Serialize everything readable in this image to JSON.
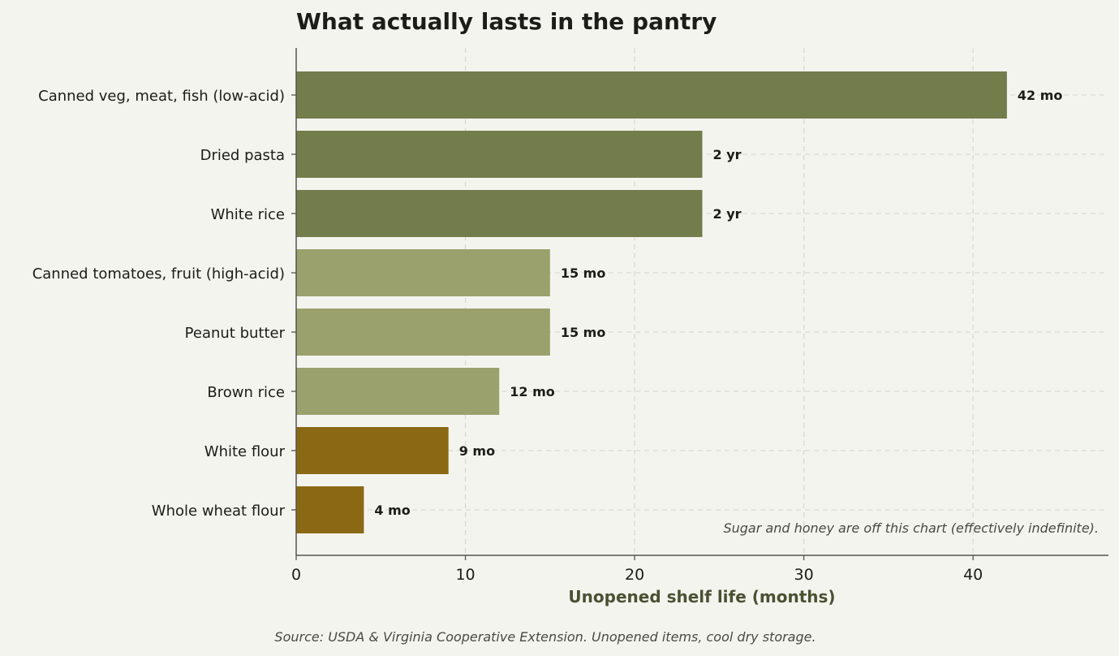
{
  "chart_data": {
    "type": "bar",
    "orientation": "horizontal",
    "title": "What actually lasts in the pantry",
    "xlabel": "Unopened shelf life (months)",
    "ylabel": "",
    "xlim": [
      0,
      48
    ],
    "xticks": [
      0,
      10,
      20,
      30,
      40
    ],
    "grid": true,
    "categories": [
      "Canned veg, meat, fish (low-acid)",
      "Dried pasta",
      "White rice",
      "Canned tomatoes, fruit (high-acid)",
      "Peanut butter",
      "Brown rice",
      "White flour",
      "Whole wheat flour"
    ],
    "values": [
      42,
      24,
      24,
      15,
      15,
      12,
      9,
      4
    ],
    "value_labels": [
      "42 mo",
      "2 yr",
      "2 yr",
      "15 mo",
      "15 mo",
      "12 mo",
      "9 mo",
      "4 mo"
    ],
    "bar_colors": [
      "#737c4b",
      "#737c4b",
      "#737c4b",
      "#9aa16c",
      "#9aa16c",
      "#9aa16c",
      "#8b6914",
      "#8b6914"
    ],
    "annotation": "Sugar and honey are off this chart (effectively indefinite).",
    "source": "Source: USDA & Virginia Cooperative Extension. Unopened items, cool dry storage."
  },
  "colors": {
    "background": "#f4f4ef",
    "long_shelf": "#737c4b",
    "medium_shelf": "#9aa16c",
    "short_shelf": "#8b6914",
    "xlabel": "#4a5133"
  }
}
